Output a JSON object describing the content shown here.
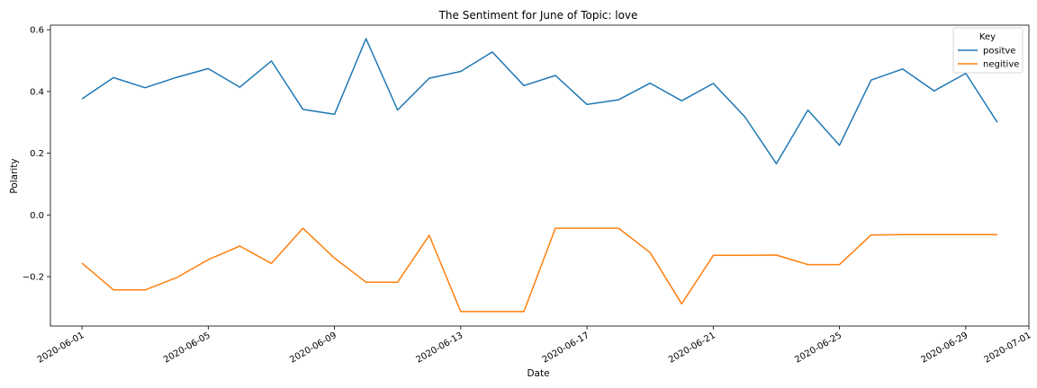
{
  "chart_data": {
    "type": "line",
    "title": "The Sentiment for June of Topic: love",
    "xlabel": "Date",
    "ylabel": "Polarity",
    "x": [
      "2020-06-01",
      "2020-06-02",
      "2020-06-03",
      "2020-06-04",
      "2020-06-05",
      "2020-06-06",
      "2020-06-07",
      "2020-06-08",
      "2020-06-09",
      "2020-06-10",
      "2020-06-11",
      "2020-06-12",
      "2020-06-13",
      "2020-06-14",
      "2020-06-15",
      "2020-06-16",
      "2020-06-17",
      "2020-06-18",
      "2020-06-19",
      "2020-06-20",
      "2020-06-21",
      "2020-06-22",
      "2020-06-23",
      "2020-06-24",
      "2020-06-25",
      "2020-06-26",
      "2020-06-27",
      "2020-06-28",
      "2020-06-29",
      "2020-06-30"
    ],
    "xlim": [
      "2020-05-31",
      "2020-07-01"
    ],
    "x_ticks": [
      "2020-06-01",
      "2020-06-05",
      "2020-06-09",
      "2020-06-13",
      "2020-06-17",
      "2020-06-21",
      "2020-06-25",
      "2020-06-29",
      "2020-07-01"
    ],
    "ylim": [
      -0.36,
      0.615
    ],
    "y_ticks": [
      -0.2,
      0.0,
      0.2,
      0.4,
      0.6
    ],
    "y_tick_labels": [
      "−0.2",
      "0.0",
      "0.2",
      "0.4",
      "0.6"
    ],
    "grid": false,
    "legend": {
      "title": "Key",
      "position": "top-right"
    },
    "series": [
      {
        "name": "positve",
        "color": "#1f77b4",
        "values": [
          0.376,
          0.445,
          0.412,
          0.446,
          0.474,
          0.414,
          0.499,
          0.342,
          0.326,
          0.571,
          0.34,
          0.443,
          0.465,
          0.528,
          0.419,
          0.452,
          0.358,
          0.373,
          0.427,
          0.37,
          0.426,
          0.318,
          0.166,
          0.34,
          0.226,
          0.437,
          0.473,
          0.402,
          0.459,
          0.3
        ]
      },
      {
        "name": "negitive",
        "color": "#ff7f0e",
        "values": [
          -0.156,
          -0.243,
          -0.243,
          -0.203,
          -0.145,
          -0.101,
          -0.157,
          -0.043,
          -0.14,
          -0.218,
          -0.218,
          -0.066,
          -0.313,
          -0.313,
          -0.313,
          -0.043,
          -0.043,
          -0.043,
          -0.122,
          -0.288,
          -0.131,
          -0.131,
          -0.13,
          -0.161,
          -0.161,
          -0.065,
          -0.064,
          -0.064,
          -0.064,
          -0.064
        ]
      }
    ]
  }
}
